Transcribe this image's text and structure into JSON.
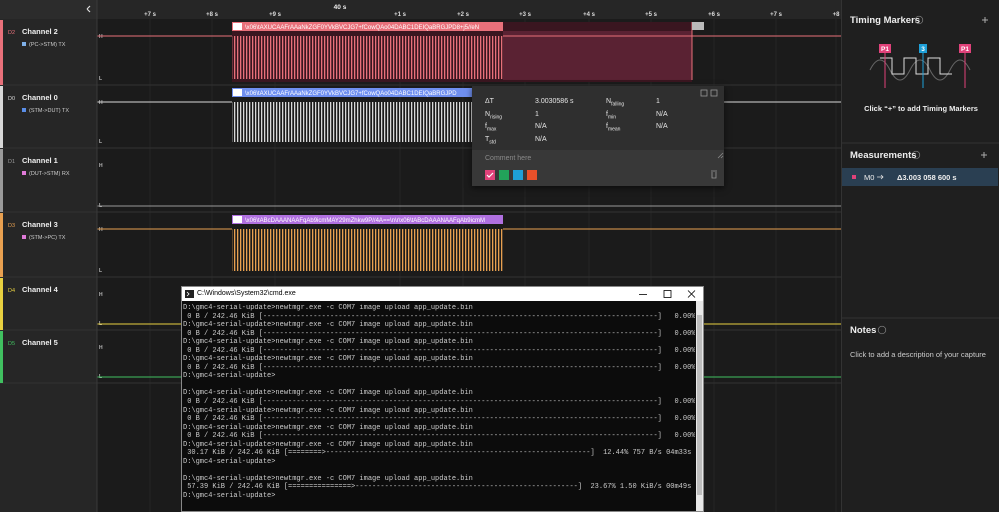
{
  "timeline": {
    "center": "40 s",
    "ticks": [
      "+7 s",
      "+8 s",
      "+9 s",
      "+1 s",
      "+2 s",
      "+3 s",
      "+4 s",
      "+5 s",
      "+6 s",
      "+7 s",
      "+8"
    ]
  },
  "levels": {
    "high": "H",
    "low": "L"
  },
  "channels": [
    {
      "id": "D2",
      "name": "Channel 2",
      "description": "(PC->STM) TX",
      "color": "#e8707a",
      "tag_color": "#7fb0e8",
      "frame": "\\x06\\tAXUCAAFrAAaNkZGF0YVkBVCJG7+fCowQAo04DABC1DEIQaBRGJPD8+j5//eN",
      "frame_color": "#e8707a"
    },
    {
      "id": "D0",
      "name": "Channel 0",
      "description": "(STM->DUT) TX",
      "color": "#d8d8d8",
      "tag_color": "#5a8ee8",
      "frame": "\\x06\\tAXUCAAFrAAaNkZGF0YVkBVCJG7+fCowQAo04DABC1DEIQaBRGJPD",
      "frame_color": "#6f8ff0"
    },
    {
      "id": "D1",
      "name": "Channel 1",
      "description": "(DUT->STM) RX",
      "color": "#9a9a9a",
      "tag_color": "#e07ad8"
    },
    {
      "id": "D3",
      "name": "Channel 3",
      "description": "(STM->PC) TX",
      "color": "#e8a050",
      "tag_color": "#e07ad8",
      "frame": "\\x06\\tABcDAAANAAFqAb9icmMAY29mZhkw9P//4A==\\n\\r\\x06\\tABcDAAANAAFqAb9icmM",
      "frame_color": "#b070e0"
    },
    {
      "id": "D4",
      "name": "Channel 4",
      "color": "#e8d040"
    },
    {
      "id": "D5",
      "name": "Channel 5",
      "color": "#40c060"
    }
  ],
  "measurement_popup": {
    "items": [
      {
        "symbol": "ΔT",
        "value": "3.0030586 s"
      },
      {
        "symbol": "N",
        "sub": "falling",
        "value": "1"
      },
      {
        "symbol": "N",
        "sub": "rising",
        "value": "1"
      },
      {
        "symbol": "f",
        "sub": "min",
        "value": "N/A"
      },
      {
        "symbol": "f",
        "sub": "max",
        "value": "N/A"
      },
      {
        "symbol": "f",
        "sub": "mean",
        "value": "N/A"
      },
      {
        "symbol": "T",
        "sub": "std",
        "value": "N/A"
      }
    ],
    "comment_placeholder": "Comment here"
  },
  "sidebar": {
    "timing_markers": {
      "title": "Timing Markers",
      "markers": [
        "P1",
        "3",
        "P1"
      ],
      "hint": "Click “+” to add Timing Markers"
    },
    "measurements": {
      "title": "Measurements",
      "rows": [
        {
          "name": "M0",
          "value": "Δ3.003 058 600 s"
        }
      ]
    },
    "notes": {
      "title": "Notes",
      "hint": "Click to add a description of your capture"
    }
  },
  "cmd": {
    "title": "C:\\Windows\\System32\\cmd.exe",
    "blocks": [
      [
        "D:\\gmc4-serial-update>newtmgr.exe -c COM7 image upload app_update.bin",
        " 0 B / 242.46 KiB [----------------------------------------------------------------------------------------------]   0.00%",
        "D:\\gmc4-serial-update>newtmgr.exe -c COM7 image upload app_update.bin",
        " 0 B / 242.46 KiB [----------------------------------------------------------------------------------------------]   0.00%",
        "D:\\gmc4-serial-update>newtmgr.exe -c COM7 image upload app_update.bin",
        " 0 B / 242.46 KiB [----------------------------------------------------------------------------------------------]   0.00%",
        "D:\\gmc4-serial-update>newtmgr.exe -c COM7 image upload app_update.bin",
        " 0 B / 242.46 KiB [----------------------------------------------------------------------------------------------]   0.00%",
        "D:\\gmc4-serial-update>"
      ],
      [
        "D:\\gmc4-serial-update>newtmgr.exe -c COM7 image upload app_update.bin",
        " 0 B / 242.46 KiB [----------------------------------------------------------------------------------------------]   0.00%",
        "D:\\gmc4-serial-update>newtmgr.exe -c COM7 image upload app_update.bin",
        " 0 B / 242.46 KiB [----------------------------------------------------------------------------------------------]   0.00%",
        "D:\\gmc4-serial-update>newtmgr.exe -c COM7 image upload app_update.bin",
        " 0 B / 242.46 KiB [----------------------------------------------------------------------------------------------]   0.00%",
        "D:\\gmc4-serial-update>newtmgr.exe -c COM7 image upload app_update.bin",
        " 30.17 KiB / 242.46 KiB [========>---------------------------------------------------------------]  12.44% 757 B/s 04m33s",
        "D:\\gmc4-serial-update>"
      ],
      [
        "D:\\gmc4-serial-update>newtmgr.exe -c COM7 image upload app_update.bin",
        " 57.39 KiB / 242.46 KiB [===============>-----------------------------------------------------]  23.67% 1.50 KiB/s 00m49s",
        "D:\\gmc4-serial-update>"
      ]
    ]
  }
}
